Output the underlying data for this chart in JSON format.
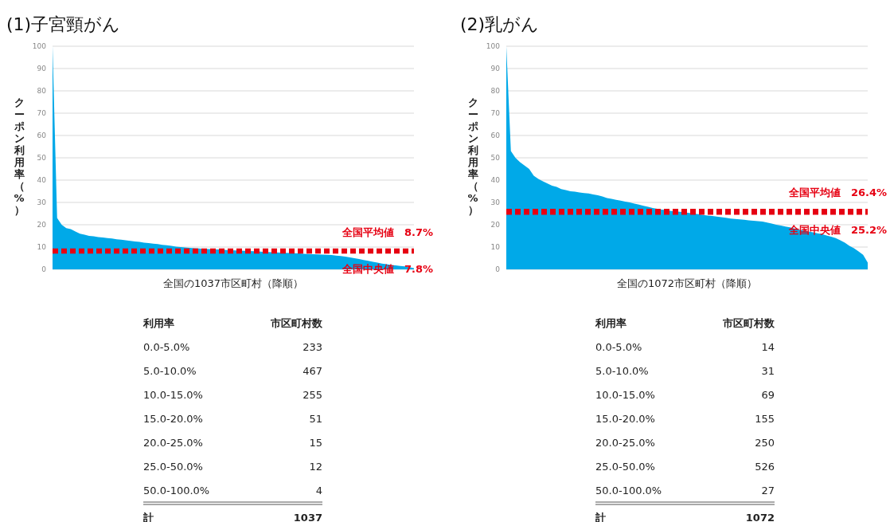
{
  "chart_data": [
    {
      "type": "area",
      "title": "(1)子宮頸がん",
      "ylabel": "クーポン利用率（%）",
      "xlabel": "全国の1037市区町村（降順）",
      "categories": [
        null,
        null,
        null,
        null,
        null,
        null,
        null,
        null,
        null,
        null,
        null,
        null,
        null,
        null,
        null,
        null,
        null,
        null,
        null,
        null,
        null,
        null,
        null,
        null,
        null,
        null,
        null,
        null,
        null,
        null,
        null,
        null,
        null,
        null,
        null,
        null,
        null,
        null,
        null,
        null,
        null,
        null,
        null,
        null,
        null,
        null,
        null,
        null,
        null,
        null,
        null,
        null,
        null,
        null,
        null,
        null,
        null,
        null,
        null,
        null,
        null,
        null,
        null,
        null,
        null,
        null,
        null,
        null,
        null,
        null,
        null,
        null,
        null,
        null,
        null,
        null,
        null,
        null,
        null,
        null
      ],
      "series": [
        {
          "color": "#00a9e8",
          "values": [
            100,
            23,
            20,
            18.5,
            18,
            17,
            16,
            15.5,
            15,
            14.8,
            14.5,
            14.3,
            14,
            13.8,
            13.5,
            13.3,
            13,
            12.8,
            12.5,
            12.3,
            12,
            11.8,
            11.5,
            11.3,
            11,
            10.8,
            10.5,
            10.2,
            10,
            9.8,
            9.6,
            9.5,
            9.4,
            9.2,
            9.1,
            9.0,
            8.9,
            8.8,
            8.7,
            8.6,
            8.5,
            8.4,
            8.3,
            8.2,
            8.1,
            8.0,
            7.9,
            7.8,
            7.7,
            7.6,
            7.5,
            7.4,
            7.3,
            7.2,
            7.1,
            7.0,
            6.9,
            6.8,
            6.7,
            6.6,
            6.5,
            6.4,
            6.2,
            6.0,
            5.7,
            5.4,
            5.0,
            4.6,
            4.2,
            3.8,
            3.4,
            3.0,
            2.6,
            2.3,
            2.0,
            1.8,
            1.5,
            1.3,
            1.0,
            0.5
          ]
        }
      ],
      "ylim": [
        0,
        100
      ],
      "yticks": [
        0,
        10,
        20,
        30,
        40,
        50,
        60,
        70,
        80,
        90,
        100
      ],
      "grid": "y",
      "tick_labels": "y",
      "ref_lines": [
        {
          "axis": "y",
          "value": 8.7,
          "label": "全国平均値　8.7%",
          "color": "#e60012",
          "line_style": "dashed"
        },
        {
          "axis": "y",
          "value": 7.8,
          "label": "全国中央値　7.8%",
          "color": "#e60012",
          "line_style": "dashed"
        }
      ]
    },
    {
      "type": "other",
      "xlabel": "利用率",
      "ylabel": "市区町村数",
      "categories": [
        "0.0-5.0%",
        "5.0-10.0%",
        "10.0-15.0%",
        "15.0-20.0%",
        "20.0-25.0%",
        "25.0-50.0%",
        "50.0-100.0%"
      ],
      "values": [
        233,
        467,
        255,
        51,
        15,
        12,
        4
      ],
      "data_labels": true,
      "annotations": [
        "計"
      ],
      "totals": [
        "1037"
      ]
    },
    {
      "type": "area",
      "title": "(2)乳がん",
      "ylabel": "クーポン利用率（%）",
      "xlabel": "全国の1072市区町村（降順）",
      "categories": [
        null,
        null,
        null,
        null,
        null,
        null,
        null,
        null,
        null,
        null,
        null,
        null,
        null,
        null,
        null,
        null,
        null,
        null,
        null,
        null,
        null,
        null,
        null,
        null,
        null,
        null,
        null,
        null,
        null,
        null,
        null,
        null,
        null,
        null,
        null,
        null,
        null,
        null,
        null,
        null,
        null,
        null,
        null,
        null,
        null,
        null,
        null,
        null,
        null,
        null,
        null,
        null,
        null,
        null,
        null,
        null,
        null,
        null,
        null,
        null,
        null,
        null,
        null,
        null,
        null,
        null,
        null,
        null,
        null,
        null,
        null,
        null,
        null,
        null,
        null,
        null,
        null,
        null,
        null,
        null
      ],
      "series": [
        {
          "color": "#00a9e8",
          "values": [
            100,
            53,
            50,
            48,
            46.5,
            45,
            42,
            40.5,
            39.5,
            38.5,
            37.5,
            37,
            36,
            35.5,
            35,
            34.8,
            34.5,
            34.2,
            34,
            33.6,
            33.2,
            32.7,
            32,
            31.6,
            31.2,
            30.8,
            30.4,
            30,
            29.5,
            29,
            28.5,
            28,
            27.5,
            27.1,
            26.8,
            26.5,
            26.2,
            26,
            25.8,
            25.5,
            25.3,
            25,
            24.7,
            24.4,
            24.1,
            23.9,
            23.7,
            23.4,
            23.1,
            22.8,
            22.6,
            22.4,
            22.2,
            22,
            21.8,
            21.6,
            21.4,
            21,
            20.5,
            20,
            19.6,
            19.2,
            18.8,
            18.3,
            17.8,
            17.4,
            17,
            16.6,
            16.2,
            15.8,
            15.2,
            14.6,
            14,
            13,
            12,
            10.5,
            9.5,
            8,
            6.5,
            3
          ]
        }
      ],
      "ylim": [
        0,
        100
      ],
      "yticks": [
        0,
        10,
        20,
        30,
        40,
        50,
        60,
        70,
        80,
        90,
        100
      ],
      "grid": "y",
      "tick_labels": "y",
      "ref_lines": [
        {
          "axis": "y",
          "value": 26.4,
          "label": "全国平均値　26.4%",
          "color": "#e60012",
          "line_style": "dashed"
        },
        {
          "axis": "y",
          "value": 25.2,
          "label": "全国中央値　25.2%",
          "color": "#e60012",
          "line_style": "dashed"
        }
      ]
    },
    {
      "type": "other",
      "xlabel": "利用率",
      "ylabel": "市区町村数",
      "categories": [
        "0.0-5.0%",
        "5.0-10.0%",
        "10.0-15.0%",
        "15.0-20.0%",
        "20.0-25.0%",
        "25.0-50.0%",
        "50.0-100.0%"
      ],
      "values": [
        14,
        31,
        69,
        155,
        250,
        526,
        27
      ],
      "data_labels": true,
      "annotations": [
        "計"
      ],
      "totals": [
        "1072"
      ]
    }
  ]
}
